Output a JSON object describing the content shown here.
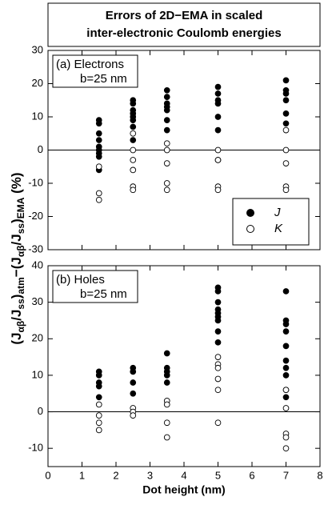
{
  "chart_data": [
    {
      "type": "scatter",
      "title": [
        "Errors of 2D−EMA in scaled",
        "inter-electronic Coulomb energies"
      ],
      "ylabel": [
        "(J",
        "αβ",
        "/J",
        "ss",
        ")",
        "atm",
        "−(J",
        "αβ",
        "/J",
        "ss",
        ")",
        "EMA",
        " (%)"
      ],
      "annotation": [
        "(a) Electrons",
        "b=25 nm"
      ],
      "xlim": [
        0,
        8
      ],
      "xticks": [
        0,
        1,
        2,
        3,
        4,
        5,
        6,
        7,
        8
      ],
      "ylim": [
        -30,
        30
      ],
      "yticks": [
        -30,
        -20,
        -10,
        0,
        10,
        20,
        30
      ],
      "zero_line": true,
      "legend": "lower right",
      "series": [
        {
          "name": "J",
          "marker": "filled",
          "color": "#000000",
          "x": [
            1.5,
            1.5,
            1.5,
            1.5,
            1.5,
            1.5,
            1.5,
            1.5,
            1.5,
            2.5,
            2.5,
            2.5,
            2.5,
            2.5,
            2.5,
            2.5,
            2.5,
            3.5,
            3.5,
            3.5,
            3.5,
            3.5,
            3.5,
            3.5,
            5,
            5,
            5,
            5,
            5,
            5,
            7,
            7,
            7,
            7,
            7,
            7
          ],
          "values": [
            9,
            8,
            5,
            3,
            1,
            0,
            -1,
            -2,
            -6,
            15,
            14,
            12,
            11,
            10,
            9,
            7,
            3,
            18,
            16,
            14,
            13,
            12,
            9,
            6,
            19,
            17,
            15,
            14,
            10,
            6,
            21,
            18,
            17,
            15,
            11,
            8
          ]
        },
        {
          "name": "K",
          "marker": "open",
          "color": "#000000",
          "x": [
            1.5,
            1.5,
            1.5,
            2.5,
            2.5,
            2.5,
            2.5,
            2.5,
            2.5,
            3.5,
            3.5,
            3.5,
            3.5,
            3.5,
            5,
            5,
            5,
            5,
            5,
            7,
            7,
            7,
            7,
            7
          ],
          "values": [
            -5,
            -13,
            -15,
            5,
            0,
            -3,
            -6,
            -11,
            -12,
            2,
            0,
            -4,
            -10,
            -12,
            0,
            -3,
            -3,
            -11,
            -12,
            6,
            0,
            -4,
            -11,
            -12
          ]
        }
      ]
    },
    {
      "type": "scatter",
      "annotation": [
        "(b) Holes",
        "b=25 nm"
      ],
      "xlabel": "Dot height (nm)",
      "xlim": [
        0,
        8
      ],
      "xticks": [
        0,
        1,
        2,
        3,
        4,
        5,
        6,
        7,
        8
      ],
      "ylim": [
        -15,
        40
      ],
      "yticks": [
        -10,
        0,
        10,
        20,
        30,
        40
      ],
      "zero_line": true,
      "series": [
        {
          "marker": "filled",
          "color": "#000000",
          "x": [
            1.5,
            1.5,
            1.5,
            1.5,
            1.5,
            2.5,
            2.5,
            2.5,
            2.5,
            3.5,
            3.5,
            3.5,
            3.5,
            3.5,
            5,
            5,
            5,
            5,
            5,
            5,
            5,
            5,
            5,
            7,
            7,
            7,
            7,
            7,
            7,
            7,
            7,
            7,
            7
          ],
          "values": [
            11,
            10,
            8,
            7,
            4,
            12,
            11,
            8,
            5,
            16,
            12,
            11,
            10,
            8,
            34,
            33,
            30,
            28,
            27,
            26,
            25,
            22,
            19,
            33,
            25,
            24,
            22,
            18,
            14,
            12,
            10,
            6,
            4
          ]
        },
        {
          "marker": "open",
          "color": "#000000",
          "x": [
            1.5,
            1.5,
            1.5,
            1.5,
            2.5,
            2.5,
            2.5,
            3.5,
            3.5,
            3.5,
            3.5,
            5,
            5,
            5,
            5,
            5,
            5,
            7,
            7,
            7,
            7,
            7
          ],
          "values": [
            2,
            -1,
            -3,
            -5,
            1,
            0,
            -1,
            3,
            2,
            -3,
            -7,
            15,
            13,
            12,
            9,
            6,
            -3,
            6,
            1,
            -6,
            -7,
            -10
          ]
        }
      ]
    }
  ]
}
